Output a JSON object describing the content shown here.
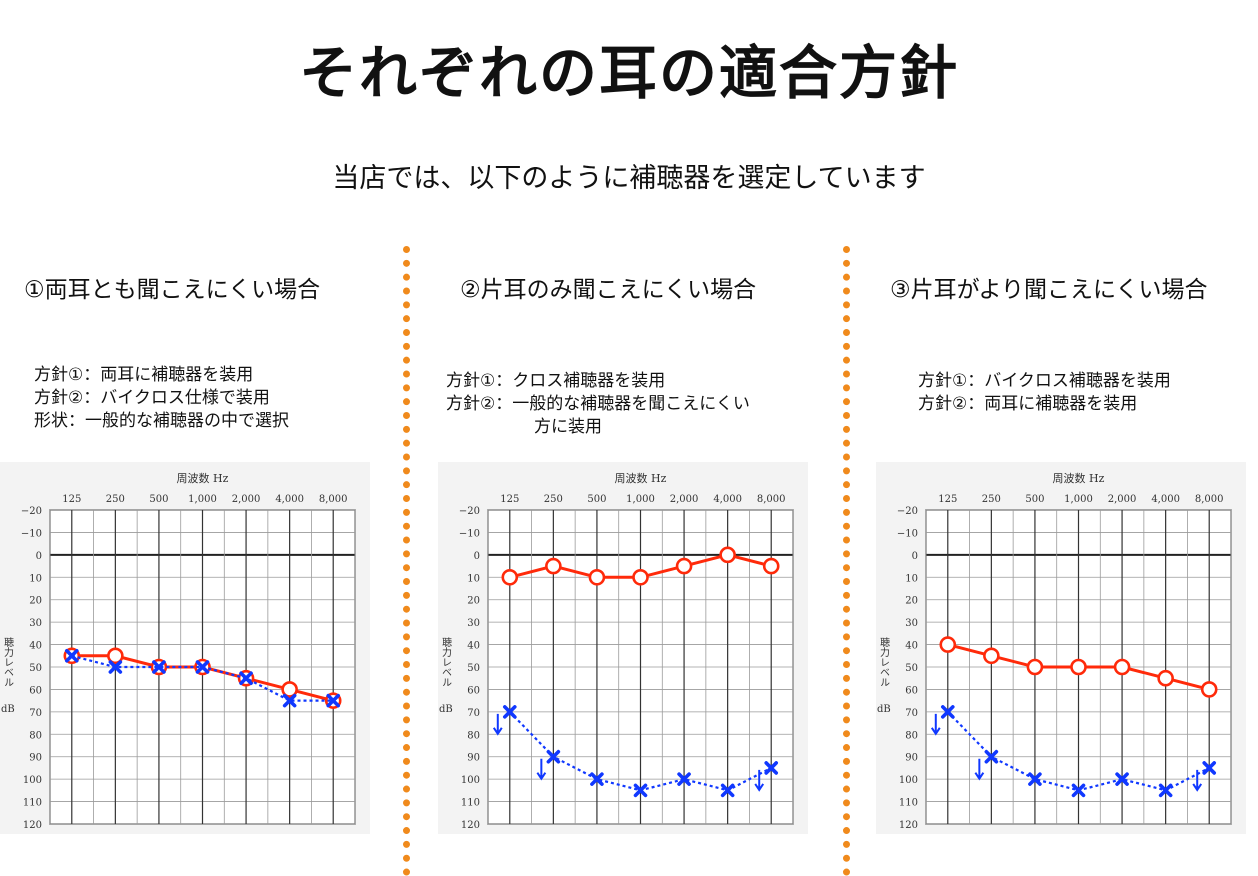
{
  "page": {
    "title": "それぞれの耳の適合方針",
    "subtitle": "当店では、以下のように補聴器を選定しています"
  },
  "panels": [
    {
      "heading": "①両耳とも聞こえにくい場合",
      "lines": [
        "方針①：両耳に補聴器を装用",
        "方針②：バイクロス仕様で装用",
        "形状：一般的な補聴器の中で選択"
      ]
    },
    {
      "heading": "②片耳のみ聞こえにくい場合",
      "lines": [
        "方針①：クロス補聴器を装用",
        "方針②：一般的な補聴器を聞こえにくい",
        "方に装用"
      ]
    },
    {
      "heading": "③片耳がより聞こえにくい場合",
      "lines": [
        "方針①：バイクロス補聴器を装用",
        "方針②：両耳に補聴器を装用"
      ]
    }
  ],
  "chart_data": [
    {
      "type": "line",
      "xlabel": "周波数 Hz",
      "ylabel": "聴力レベル dB",
      "categories": [
        "125",
        "250",
        "500",
        "1,000",
        "2,000",
        "4,000",
        "8,000"
      ],
      "y_ticks": [
        "−20",
        "−10",
        "0",
        "10",
        "20",
        "30",
        "40",
        "50",
        "60",
        "70",
        "80",
        "90",
        "100",
        "110",
        "120"
      ],
      "ylim": [
        -20,
        120
      ],
      "y_inverted": true,
      "series": [
        {
          "marker": "circle",
          "color": "#ff2a0a",
          "line": "solid",
          "values": [
            45,
            45,
            50,
            50,
            55,
            60,
            65
          ],
          "arrows": []
        },
        {
          "marker": "x",
          "color": "#1038ff",
          "line": "dotted",
          "values": [
            45,
            50,
            50,
            50,
            55,
            65,
            65
          ],
          "arrows": []
        }
      ]
    },
    {
      "type": "line",
      "xlabel": "周波数 Hz",
      "ylabel": "聴力レベル dB",
      "categories": [
        "125",
        "250",
        "500",
        "1,000",
        "2,000",
        "4,000",
        "8,000"
      ],
      "y_ticks": [
        "−20",
        "−10",
        "0",
        "10",
        "20",
        "30",
        "40",
        "50",
        "60",
        "70",
        "80",
        "90",
        "100",
        "110",
        "120"
      ],
      "ylim": [
        -20,
        120
      ],
      "y_inverted": true,
      "series": [
        {
          "marker": "circle",
          "color": "#ff2a0a",
          "line": "solid",
          "values": [
            10,
            5,
            10,
            10,
            5,
            0,
            5
          ],
          "arrows": []
        },
        {
          "marker": "x",
          "color": "#1038ff",
          "line": "dotted",
          "values": [
            70,
            90,
            100,
            105,
            100,
            105,
            95
          ],
          "arrows": [
            0,
            1,
            6
          ]
        }
      ]
    },
    {
      "type": "line",
      "xlabel": "周波数 Hz",
      "ylabel": "聴力レベル dB",
      "categories": [
        "125",
        "250",
        "500",
        "1,000",
        "2,000",
        "4,000",
        "8,000"
      ],
      "y_ticks": [
        "−20",
        "−10",
        "0",
        "10",
        "20",
        "30",
        "40",
        "50",
        "60",
        "70",
        "80",
        "90",
        "100",
        "110",
        "120"
      ],
      "ylim": [
        -20,
        120
      ],
      "y_inverted": true,
      "series": [
        {
          "marker": "circle",
          "color": "#ff2a0a",
          "line": "solid",
          "values": [
            40,
            45,
            50,
            50,
            50,
            55,
            60
          ],
          "arrows": []
        },
        {
          "marker": "x",
          "color": "#1038ff",
          "line": "dotted",
          "values": [
            70,
            90,
            100,
            105,
            100,
            105,
            95
          ],
          "arrows": [
            0,
            1,
            6
          ]
        }
      ]
    }
  ]
}
